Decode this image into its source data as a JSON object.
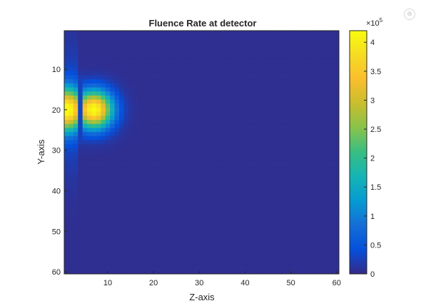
{
  "toolbar": {
    "icon": "figure-toolbar-icon"
  },
  "chart_data": {
    "type": "heatmap",
    "title": "Fluence Rate at detector",
    "xlabel": "Z-axis",
    "ylabel": "Y-axis",
    "xlim": [
      0.5,
      60.5
    ],
    "ylim": [
      0.5,
      60.5
    ],
    "y_reversed": true,
    "grid_size": [
      60,
      60
    ],
    "xticks": [
      10,
      20,
      30,
      40,
      50,
      60
    ],
    "yticks": [
      10,
      20,
      30,
      40,
      50,
      60
    ],
    "xtick_labels": [
      "10",
      "20",
      "30",
      "40",
      "50",
      "60"
    ],
    "ytick_labels": [
      "10",
      "20",
      "30",
      "40",
      "50",
      "60"
    ],
    "colormap": "parula",
    "colorbar": {
      "exponent_label": "×10",
      "exponent": "5",
      "range": [
        0,
        4.2
      ],
      "ticks": [
        0,
        0.5,
        1,
        1.5,
        2,
        2.5,
        3,
        3.5,
        4
      ],
      "tick_labels": [
        "0",
        "0.5",
        "1",
        "1.5",
        "2",
        "2.5",
        "3",
        "3.5",
        "4"
      ]
    },
    "hotspots": [
      {
        "name": "main",
        "z": 7,
        "y": 20,
        "peak": 4.2,
        "sigma_z": 2.8,
        "sigma_y": 3.2
      },
      {
        "name": "edge",
        "z": 1,
        "y": 20,
        "peak": 3.5,
        "sigma_z": 1.6,
        "sigma_y": 3.6
      }
    ],
    "background_value": 0.05,
    "dark_column": {
      "z": 4,
      "value": 0.12
    }
  }
}
